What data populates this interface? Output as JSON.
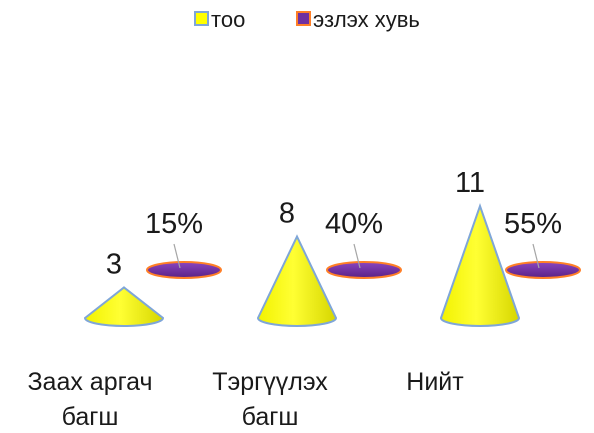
{
  "chart_data": {
    "type": "bar",
    "subtype": "3d-cone",
    "categories": [
      [
        "Заах аргач",
        "багш"
      ],
      [
        "Тэргүүлэх",
        "багш"
      ],
      [
        "Нийт"
      ]
    ],
    "series": [
      {
        "name": "тоо",
        "values": [
          3,
          8,
          11
        ],
        "labels": [
          "3",
          "8",
          "11"
        ],
        "color": "#ffff00",
        "border": "#7fa6d8"
      },
      {
        "name": "эзлэх хувь",
        "values": [
          0.15,
          0.4,
          0.55
        ],
        "labels": [
          "15%",
          "40%",
          "55%"
        ],
        "color": "#7030a0",
        "border": "#ff7f27"
      }
    ],
    "legend": "top-center",
    "grid": false,
    "axes_visible": false
  }
}
